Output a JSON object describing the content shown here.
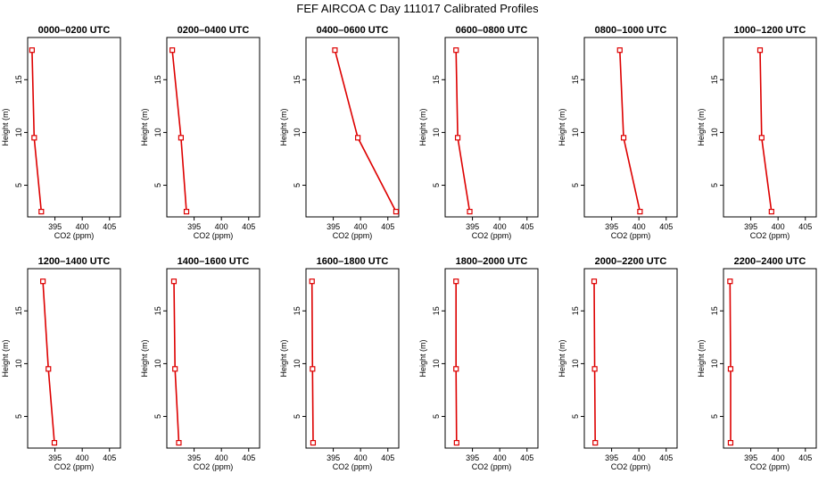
{
  "figure": {
    "title": "FEF AIRCOA C  Day 111017  Calibrated Profiles"
  },
  "colors": {
    "series": "#dd0000",
    "axis": "#000000"
  },
  "chart_data": [
    {
      "type": "line",
      "title": "0000–0200 UTC",
      "xlabel": "CO2 (ppm)",
      "ylabel": "Height (m)",
      "xlim": [
        390,
        407
      ],
      "ylim": [
        2,
        19
      ],
      "xticks": [
        "395",
        "400",
        "405"
      ],
      "yticks": [
        "5",
        "10",
        "15"
      ],
      "x": [
        390.8,
        391.2,
        392.5
      ],
      "y": [
        17.8,
        9.5,
        2.5
      ]
    },
    {
      "type": "line",
      "title": "0200–0400 UTC",
      "xlabel": "CO2 (ppm)",
      "ylabel": "Height (m)",
      "xlim": [
        390,
        407
      ],
      "ylim": [
        2,
        19
      ],
      "xticks": [
        "395",
        "400",
        "405"
      ],
      "yticks": [
        "5",
        "10",
        "15"
      ],
      "x": [
        391.0,
        392.6,
        393.6
      ],
      "y": [
        17.8,
        9.5,
        2.5
      ]
    },
    {
      "type": "line",
      "title": "0400–0600 UTC",
      "xlabel": "CO2 (ppm)",
      "ylabel": "Height (m)",
      "xlim": [
        390,
        407
      ],
      "ylim": [
        2,
        19
      ],
      "xticks": [
        "395",
        "400",
        "405"
      ],
      "yticks": [
        "5",
        "10",
        "15"
      ],
      "x": [
        395.3,
        399.5,
        406.5
      ],
      "y": [
        17.8,
        9.5,
        2.5
      ]
    },
    {
      "type": "line",
      "title": "0600–0800 UTC",
      "xlabel": "CO2 (ppm)",
      "ylabel": "Height (m)",
      "xlim": [
        390,
        407
      ],
      "ylim": [
        2,
        19
      ],
      "xticks": [
        "395",
        "400",
        "405"
      ],
      "yticks": [
        "5",
        "10",
        "15"
      ],
      "x": [
        392.0,
        392.3,
        394.5
      ],
      "y": [
        17.8,
        9.5,
        2.5
      ]
    },
    {
      "type": "line",
      "title": "0800–1000 UTC",
      "xlabel": "CO2 (ppm)",
      "ylabel": "Height (m)",
      "xlim": [
        390,
        407
      ],
      "ylim": [
        2,
        19
      ],
      "xticks": [
        "395",
        "400",
        "405"
      ],
      "yticks": [
        "5",
        "10",
        "15"
      ],
      "x": [
        396.5,
        397.2,
        400.2
      ],
      "y": [
        17.8,
        9.5,
        2.5
      ]
    },
    {
      "type": "line",
      "title": "1000–1200 UTC",
      "xlabel": "CO2 (ppm)",
      "ylabel": "Height (m)",
      "xlim": [
        390,
        407
      ],
      "ylim": [
        2,
        19
      ],
      "xticks": [
        "395",
        "400",
        "405"
      ],
      "yticks": [
        "5",
        "10",
        "15"
      ],
      "x": [
        396.7,
        397.0,
        398.8
      ],
      "y": [
        17.8,
        9.5,
        2.5
      ]
    },
    {
      "type": "line",
      "title": "1200–1400 UTC",
      "xlabel": "CO2 (ppm)",
      "ylabel": "Height (m)",
      "xlim": [
        390,
        407
      ],
      "ylim": [
        2,
        19
      ],
      "xticks": [
        "395",
        "400",
        "405"
      ],
      "yticks": [
        "5",
        "10",
        "15"
      ],
      "x": [
        392.8,
        393.8,
        394.9
      ],
      "y": [
        17.8,
        9.5,
        2.5
      ]
    },
    {
      "type": "line",
      "title": "1400–1600 UTC",
      "xlabel": "CO2 (ppm)",
      "ylabel": "Height (m)",
      "xlim": [
        390,
        407
      ],
      "ylim": [
        2,
        19
      ],
      "xticks": [
        "395",
        "400",
        "405"
      ],
      "yticks": [
        "5",
        "10",
        "15"
      ],
      "x": [
        391.3,
        391.5,
        392.2
      ],
      "y": [
        17.8,
        9.5,
        2.5
      ]
    },
    {
      "type": "line",
      "title": "1600–1800 UTC",
      "xlabel": "CO2 (ppm)",
      "ylabel": "Height (m)",
      "xlim": [
        390,
        407
      ],
      "ylim": [
        2,
        19
      ],
      "xticks": [
        "395",
        "400",
        "405"
      ],
      "yticks": [
        "5",
        "10",
        "15"
      ],
      "x": [
        391.1,
        391.2,
        391.3
      ],
      "y": [
        17.8,
        9.5,
        2.5
      ]
    },
    {
      "type": "line",
      "title": "1800–2000 UTC",
      "xlabel": "CO2 (ppm)",
      "ylabel": "Height (m)",
      "xlim": [
        390,
        407
      ],
      "ylim": [
        2,
        19
      ],
      "xticks": [
        "395",
        "400",
        "405"
      ],
      "yticks": [
        "5",
        "10",
        "15"
      ],
      "x": [
        392.0,
        392.0,
        392.1
      ],
      "y": [
        17.8,
        9.5,
        2.5
      ]
    },
    {
      "type": "line",
      "title": "2000–2200 UTC",
      "xlabel": "CO2 (ppm)",
      "ylabel": "Height (m)",
      "xlim": [
        390,
        407
      ],
      "ylim": [
        2,
        19
      ],
      "xticks": [
        "395",
        "400",
        "405"
      ],
      "yticks": [
        "5",
        "10",
        "15"
      ],
      "x": [
        391.8,
        391.9,
        392.0
      ],
      "y": [
        17.8,
        9.5,
        2.5
      ]
    },
    {
      "type": "line",
      "title": "2200–2400 UTC",
      "xlabel": "CO2 (ppm)",
      "ylabel": "Height (m)",
      "xlim": [
        390,
        407
      ],
      "ylim": [
        2,
        19
      ],
      "xticks": [
        "395",
        "400",
        "405"
      ],
      "yticks": [
        "5",
        "10",
        "15"
      ],
      "x": [
        391.2,
        391.3,
        391.3
      ],
      "y": [
        17.8,
        9.5,
        2.5
      ]
    }
  ]
}
